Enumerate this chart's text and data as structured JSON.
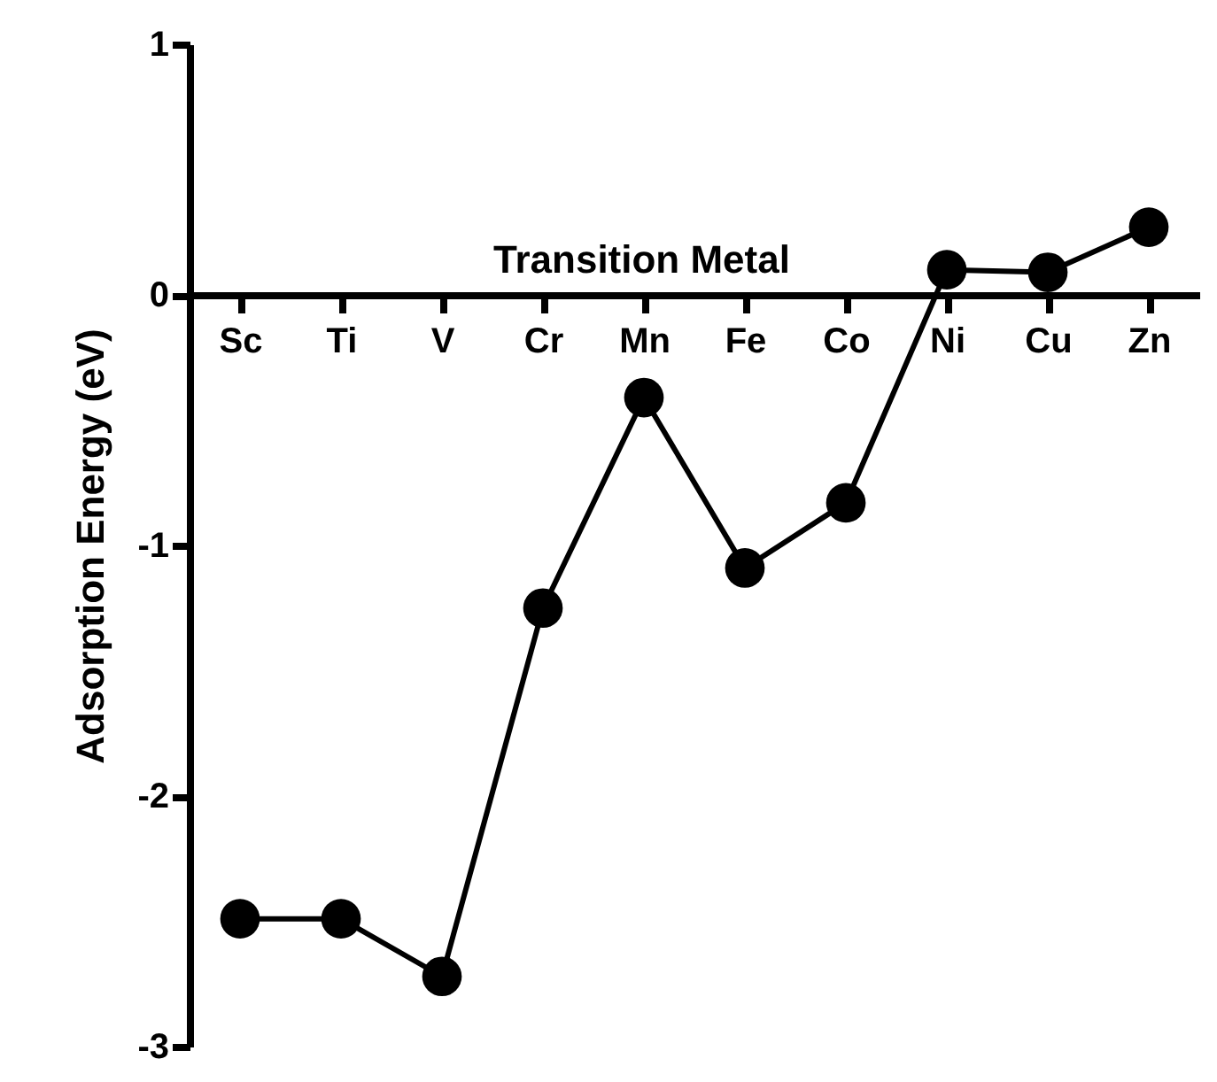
{
  "chart_data": {
    "type": "line",
    "xlabel": "Transition Metal",
    "ylabel": "Adsorption Energy (eV)",
    "categories": [
      "Sc",
      "Ti",
      "V",
      "Cr",
      "Mn",
      "Fe",
      "Co",
      "Ni",
      "Cu",
      "Zn"
    ],
    "series": [
      {
        "color": "#000000",
        "values": [
          -2.49,
          -2.49,
          -2.72,
          -1.25,
          -0.41,
          -1.09,
          -0.83,
          0.1,
          0.09,
          0.27
        ]
      }
    ],
    "ylim": [
      -3,
      1
    ],
    "yticks": [
      -3,
      -2,
      -1,
      0,
      1
    ],
    "grid": false,
    "marker": "circle",
    "line_style": "solid"
  }
}
